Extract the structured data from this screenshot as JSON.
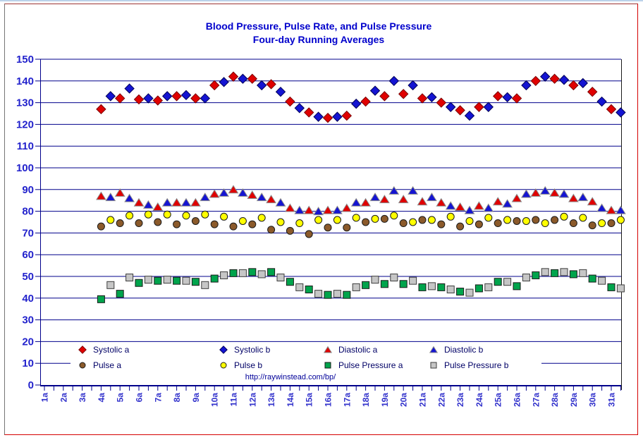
{
  "title": {
    "line1": "Blood Pressure, Pulse Rate, and Pulse Pressure",
    "line2": "Four-day Running Averages"
  },
  "footer_url": "http://raywinstead.com/bp/",
  "colors": {
    "title_text": "#0000cc",
    "y_axis_label_text": "#2222cc",
    "x_axis_label_text": "#3333cc",
    "legend_text": "#000066",
    "url_text": "#000099",
    "grid_line": "#00008b",
    "axis_line": "#00008b",
    "plot_right_border": "#1a1a1a",
    "frame_border_top": "#9c3333",
    "frame_border_left": "#757575",
    "frame_border_right": "#d40000",
    "frame_border_bottom": "#d40000"
  },
  "chart_data": {
    "type": "scatter",
    "title": "Blood Pressure, Pulse Rate, and Pulse Pressure — Four-day Running Averages",
    "ylim": [
      0,
      150
    ],
    "ytick_step": 10,
    "y_tick_labels": [
      "0",
      "10",
      "20",
      "30",
      "40",
      "50",
      "60",
      "70",
      "80",
      "90",
      "100",
      "110",
      "120",
      "130",
      "140",
      "150"
    ],
    "grid": true,
    "legend_position": "bottom-inside",
    "x_axis": {
      "labels": [
        "1a",
        "2a",
        "3a",
        "4a",
        "5a",
        "6a",
        "7a",
        "8a",
        "9a",
        "10a",
        "11a",
        "12a",
        "13a",
        "14a",
        "15a",
        "16a",
        "17a",
        "18a",
        "19a",
        "20a",
        "21a",
        "22a",
        "23a",
        "24a",
        "25a",
        "26a",
        "27a",
        "28a",
        "29a",
        "30a",
        "31a"
      ],
      "slots_per_day": 2,
      "note": "each day has an unlabeled minor tick for the b reading between day labels"
    },
    "series": [
      {
        "name": "Systolic a",
        "marker": "diamond",
        "color": "#e00000",
        "outline": "#7a0000",
        "slot": "a",
        "start_day": 4,
        "values": [
          127,
          132,
          131.5,
          131,
          133,
          132,
          138,
          142,
          141,
          138.5,
          130.5,
          125.5,
          123,
          124,
          130.5,
          133,
          134,
          132,
          130,
          126.5,
          128,
          133,
          132,
          140,
          141,
          138,
          135,
          127
        ]
      },
      {
        "name": "Systolic b",
        "marker": "diamond",
        "color": "#1414d2",
        "outline": "#000055",
        "slot": "b",
        "start_day": 4,
        "values": [
          133,
          136.5,
          132,
          133,
          133.5,
          132,
          139.5,
          141,
          138,
          135,
          127.5,
          123.5,
          123.5,
          129.5,
          135.5,
          140,
          138,
          132.5,
          128,
          124,
          128,
          132.5,
          138,
          142,
          140.5,
          139,
          130.5,
          125.5
        ]
      },
      {
        "name": "Diastolic a",
        "marker": "triangle",
        "color": "#e00000",
        "outline": "#8a8a8a",
        "slot": "a",
        "start_day": 4,
        "values": [
          87,
          88.5,
          84,
          82,
          84,
          84,
          88,
          90,
          87.5,
          85.5,
          81.5,
          80.5,
          80.5,
          81.5,
          84,
          85.5,
          85.5,
          84.5,
          84,
          82,
          82.5,
          84.5,
          86,
          88.5,
          88.5,
          86,
          84.5,
          80.5
        ]
      },
      {
        "name": "Diastolic b",
        "marker": "triangle",
        "color": "#1414d2",
        "outline": "#8a8a8a",
        "slot": "b",
        "start_day": 4,
        "values": [
          86.5,
          86,
          83,
          84,
          84,
          86.5,
          88.5,
          88.5,
          86.5,
          84,
          80.5,
          80,
          80.5,
          84,
          86.5,
          89.5,
          89.5,
          86.5,
          82.5,
          80.5,
          81.5,
          83.5,
          88,
          89.5,
          88,
          86.5,
          81.5,
          80.5
        ]
      },
      {
        "name": "Pulse a",
        "marker": "circle",
        "color": "#8b5a2b",
        "outline": "#1a1a1a",
        "slot": "a",
        "start_day": 4,
        "values": [
          73,
          74.5,
          74.5,
          75,
          74,
          75.5,
          74,
          73,
          74,
          71.5,
          71,
          69.5,
          72.5,
          72.5,
          75,
          76.5,
          74.5,
          76,
          74,
          73,
          74,
          74.5,
          75.5,
          76,
          76,
          74.5,
          73.5,
          74.5
        ]
      },
      {
        "name": "Pulse b",
        "marker": "circle",
        "color": "#ffff00",
        "outline": "#1a1a1a",
        "slot": "b",
        "start_day": 4,
        "values": [
          76,
          78,
          78.5,
          78.5,
          78,
          78.5,
          77.5,
          75.5,
          77,
          75,
          74.5,
          76,
          76,
          77,
          76.5,
          78,
          75,
          76,
          77.5,
          75.5,
          77,
          76,
          75.5,
          74.5,
          77.5,
          77,
          74.5,
          76
        ]
      },
      {
        "name": "Pulse Pressure a",
        "marker": "square",
        "color": "#00a44c",
        "outline": "#1a1a1a",
        "slot": "a",
        "start_day": 4,
        "values": [
          39.5,
          42,
          47,
          48,
          48,
          47.5,
          49,
          51.5,
          52,
          52,
          47.5,
          44,
          41.5,
          41.5,
          46,
          46.5,
          46.5,
          45,
          45,
          43,
          44.5,
          47.5,
          45.5,
          50.5,
          51.5,
          51,
          49,
          45
        ]
      },
      {
        "name": "Pulse Pressure b",
        "marker": "square",
        "color": "#c6c6c6",
        "outline": "#3d3d3d",
        "slot": "b",
        "start_day": 4,
        "values": [
          46,
          49.5,
          48.5,
          48.5,
          48,
          46,
          50.5,
          51.5,
          51,
          49.5,
          45,
          42,
          42,
          45,
          48.5,
          49.5,
          48,
          45.5,
          44,
          42.5,
          45,
          47.5,
          49.5,
          52,
          52,
          51.5,
          48,
          44.5
        ]
      }
    ],
    "legend_rows": [
      [
        "Systolic a",
        "Systolic b",
        "Diastolic a",
        "Diastolic b"
      ],
      [
        "Pulse a",
        "Pulse b",
        "Pulse Pressure a",
        "Pulse Pressure b"
      ]
    ]
  }
}
